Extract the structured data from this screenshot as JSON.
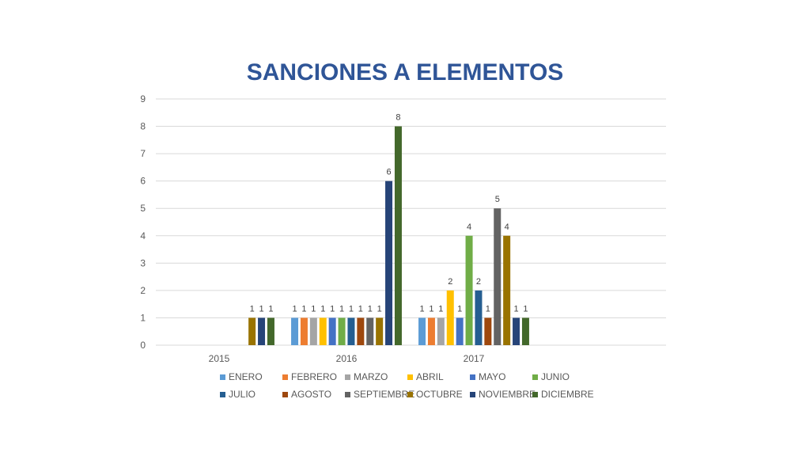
{
  "chart_data": {
    "type": "bar",
    "title": "SANCIONES A ELEMENTOS",
    "xlabel": "",
    "ylabel": "",
    "ylim": [
      0,
      9
    ],
    "yticks": [
      0,
      1,
      2,
      3,
      4,
      5,
      6,
      7,
      8,
      9
    ],
    "grid": true,
    "legend_position": "bottom",
    "categories": [
      "2015",
      "2016",
      "2017"
    ],
    "series": [
      {
        "name": "ENERO",
        "color": "#5b9bd5",
        "values": [
          null,
          1,
          1
        ]
      },
      {
        "name": "FEBRERO",
        "color": "#ed7d31",
        "values": [
          null,
          1,
          1
        ]
      },
      {
        "name": "MARZO",
        "color": "#a5a5a5",
        "values": [
          null,
          1,
          1
        ]
      },
      {
        "name": "ABRIL",
        "color": "#ffc000",
        "values": [
          null,
          1,
          2
        ]
      },
      {
        "name": "MAYO",
        "color": "#4472c4",
        "values": [
          null,
          1,
          1
        ]
      },
      {
        "name": "JUNIO",
        "color": "#70ad47",
        "values": [
          null,
          1,
          4
        ]
      },
      {
        "name": "JULIO",
        "color": "#255e91",
        "values": [
          null,
          1,
          2
        ]
      },
      {
        "name": "AGOSTO",
        "color": "#9e480e",
        "values": [
          null,
          1,
          1
        ]
      },
      {
        "name": "SEPTIEMBRE",
        "color": "#636363",
        "values": [
          null,
          1,
          5
        ]
      },
      {
        "name": "OCTUBRE",
        "color": "#997300",
        "values": [
          1,
          1,
          4
        ]
      },
      {
        "name": "NOVIEMBRE",
        "color": "#264478",
        "values": [
          1,
          6,
          1
        ]
      },
      {
        "name": "DICIEMBRE",
        "color": "#43682b",
        "values": [
          1,
          8,
          1
        ]
      }
    ]
  }
}
